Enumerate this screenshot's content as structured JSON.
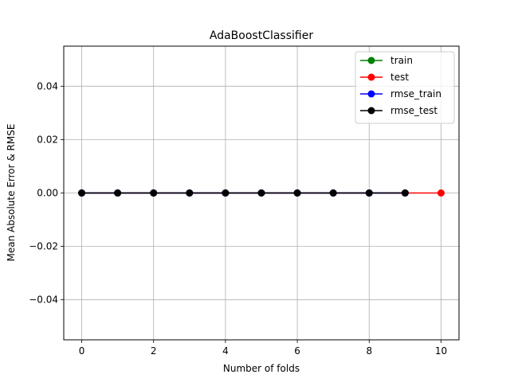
{
  "chart_data": {
    "type": "line",
    "title": "AdaBoostClassifier",
    "xlabel": "Number of folds",
    "ylabel": "Mean Absolute Error & RMSE",
    "xlim": [
      -0.5,
      10.5
    ],
    "ylim": [
      -0.055,
      0.055
    ],
    "xticks": [
      0,
      2,
      4,
      6,
      8,
      10
    ],
    "yticks": [
      -0.04,
      -0.02,
      0.0,
      0.02,
      0.04
    ],
    "xtick_labels": [
      "0",
      "2",
      "4",
      "6",
      "8",
      "10"
    ],
    "ytick_labels": [
      "−0.04",
      "−0.02",
      "0.00",
      "0.02",
      "0.04"
    ],
    "grid": true,
    "legend_position": "top-right",
    "series": [
      {
        "name": "train",
        "color": "#008000",
        "x": [
          0,
          1,
          2,
          3,
          4,
          5,
          6,
          7,
          8,
          9
        ],
        "values": [
          0,
          0,
          0,
          0,
          0,
          0,
          0,
          0,
          0,
          0
        ]
      },
      {
        "name": "test",
        "color": "#ff0000",
        "x": [
          0,
          1,
          2,
          3,
          4,
          5,
          6,
          7,
          8,
          9,
          10
        ],
        "values": [
          0,
          0,
          0,
          0,
          0,
          0,
          0,
          0,
          0,
          0,
          0
        ]
      },
      {
        "name": "rmse_train",
        "color": "#0000ff",
        "x": [
          0,
          1,
          2,
          3,
          4,
          5,
          6,
          7,
          8,
          9
        ],
        "values": [
          0,
          0,
          0,
          0,
          0,
          0,
          0,
          0,
          0,
          0
        ]
      },
      {
        "name": "rmse_test",
        "color": "#000000",
        "x": [
          0,
          1,
          2,
          3,
          4,
          5,
          6,
          7,
          8,
          9
        ],
        "values": [
          0,
          0,
          0,
          0,
          0,
          0,
          0,
          0,
          0,
          0
        ]
      }
    ]
  }
}
